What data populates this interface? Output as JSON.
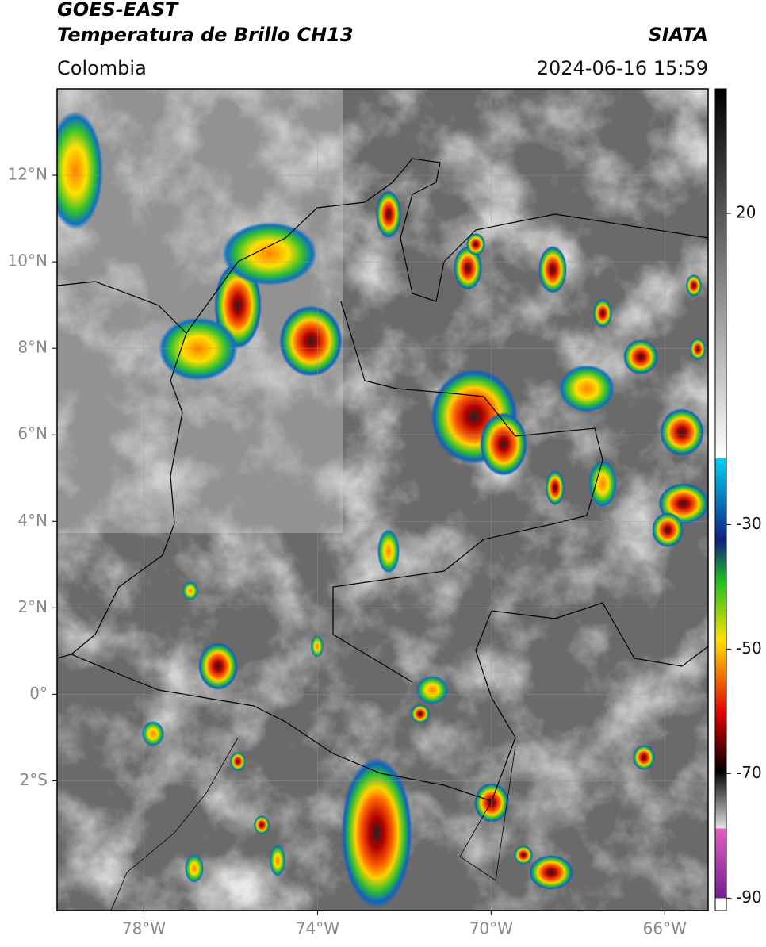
{
  "header": {
    "title": "GOES-EAST",
    "subtitle": "Temperatura de Brillo CH13",
    "region": "Colombia",
    "source": "SIATA",
    "datetime": "2024-06-16 15:59"
  },
  "map": {
    "xlim": [
      -80,
      -65
    ],
    "ylim": [
      -5,
      14
    ],
    "xticks": [
      {
        "value": -78,
        "label": "78°W"
      },
      {
        "value": -74,
        "label": "74°W"
      },
      {
        "value": -70,
        "label": "70°W"
      },
      {
        "value": -66,
        "label": "66°W"
      }
    ],
    "yticks": [
      {
        "value": 12,
        "label": "12°N"
      },
      {
        "value": 10,
        "label": "10°N"
      },
      {
        "value": 8,
        "label": "8°N"
      },
      {
        "value": 6,
        "label": "6°N"
      },
      {
        "value": 4,
        "label": "4°N"
      },
      {
        "value": 2,
        "label": "2°N"
      },
      {
        "value": 0,
        "label": "0°"
      },
      {
        "value": -2,
        "label": "2°S"
      }
    ]
  },
  "colorbar": {
    "lim": [
      -92,
      40
    ],
    "ticks": [
      20,
      -30,
      -50,
      -70,
      -90
    ]
  }
}
